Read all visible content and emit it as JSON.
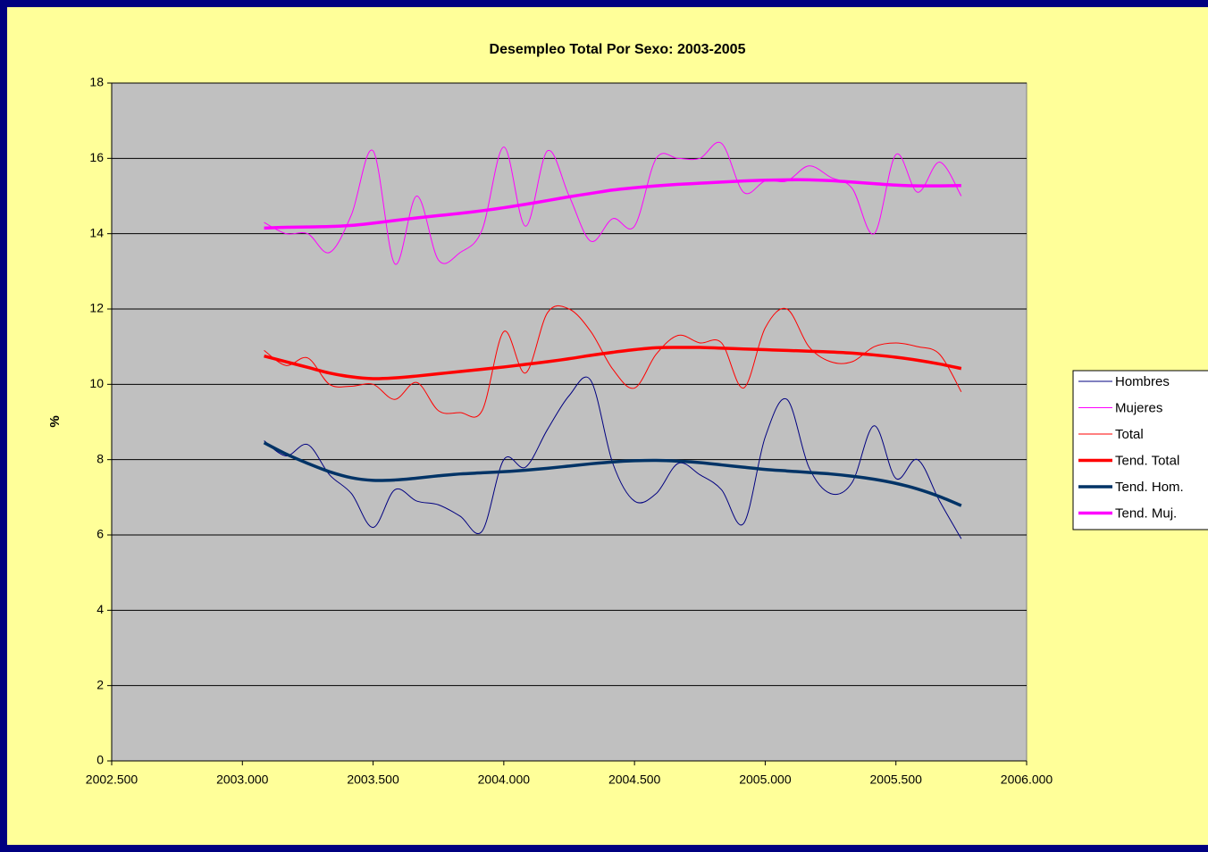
{
  "chart_data": {
    "type": "line",
    "title": "Desempleo Total Por Sexo: 2003-2005",
    "y_label": "%",
    "x": [
      2003.083,
      2003.167,
      2003.25,
      2003.333,
      2003.417,
      2003.5,
      2003.583,
      2003.667,
      2003.75,
      2003.833,
      2003.917,
      2004,
      2004.083,
      2004.167,
      2004.25,
      2004.333,
      2004.417,
      2004.5,
      2004.583,
      2004.667,
      2004.75,
      2004.833,
      2004.917,
      2005,
      2005.083,
      2005.167,
      2005.25,
      2005.333,
      2005.417,
      2005.5,
      2005.583,
      2005.667,
      2005.75
    ],
    "series": [
      {
        "name": "Hombres",
        "color": "#000080",
        "line_width": 1,
        "values": [
          8.5,
          8.1,
          8.4,
          7.6,
          7.1,
          6.2,
          7.2,
          6.9,
          6.8,
          6.5,
          6.1,
          8.0,
          7.8,
          8.8,
          9.7,
          10.1,
          7.9,
          6.9,
          7.1,
          7.9,
          7.6,
          7.2,
          6.3,
          8.6,
          9.6,
          7.8,
          7.1,
          7.4,
          8.9,
          7.5,
          8.0,
          6.9,
          5.9
        ]
      },
      {
        "name": "Mujeres",
        "color": "#ff00ff",
        "line_width": 1,
        "values": [
          14.3,
          14.0,
          14.0,
          13.5,
          14.5,
          16.2,
          13.2,
          15.0,
          13.3,
          13.5,
          14.1,
          16.3,
          14.2,
          16.2,
          15.0,
          13.8,
          14.4,
          14.2,
          16.0,
          16.0,
          16.0,
          16.4,
          15.1,
          15.4,
          15.4,
          15.8,
          15.5,
          15.2,
          14.0,
          16.1,
          15.1,
          15.9,
          15.0
        ]
      },
      {
        "name": "Total",
        "color": "#ff0000",
        "line_width": 1,
        "values": [
          10.9,
          10.5,
          10.7,
          10.0,
          9.95,
          10.0,
          9.6,
          10.05,
          9.3,
          9.25,
          9.3,
          11.4,
          10.3,
          11.9,
          12.0,
          11.4,
          10.4,
          9.9,
          10.8,
          11.3,
          11.1,
          11.1,
          9.9,
          11.5,
          12.0,
          11.0,
          10.6,
          10.6,
          11.0,
          11.1,
          11.0,
          10.8,
          9.8
        ]
      },
      {
        "name": "Tend. Total",
        "color": "#ff0000",
        "line_width": 3.5,
        "values": [
          10.75,
          10.6,
          10.45,
          10.3,
          10.2,
          10.15,
          10.17,
          10.22,
          10.28,
          10.34,
          10.4,
          10.46,
          10.53,
          10.6,
          10.68,
          10.77,
          10.85,
          10.92,
          10.97,
          10.98,
          10.98,
          10.96,
          10.94,
          10.92,
          10.9,
          10.88,
          10.86,
          10.83,
          10.78,
          10.72,
          10.64,
          10.54,
          10.42
        ]
      },
      {
        "name": "Tend. Hom.",
        "color": "#003366",
        "line_width": 3.5,
        "values": [
          8.45,
          8.15,
          7.9,
          7.68,
          7.52,
          7.45,
          7.46,
          7.51,
          7.57,
          7.62,
          7.65,
          7.68,
          7.72,
          7.77,
          7.83,
          7.89,
          7.94,
          7.97,
          7.98,
          7.96,
          7.92,
          7.86,
          7.8,
          7.74,
          7.7,
          7.66,
          7.62,
          7.56,
          7.48,
          7.37,
          7.22,
          7.02,
          6.78
        ]
      },
      {
        "name": "Tend. Muj.",
        "color": "#ff00ff",
        "line_width": 3.5,
        "values": [
          14.15,
          14.17,
          14.18,
          14.19,
          14.22,
          14.28,
          14.35,
          14.42,
          14.48,
          14.54,
          14.61,
          14.69,
          14.78,
          14.88,
          14.98,
          15.07,
          15.16,
          15.22,
          15.27,
          15.31,
          15.34,
          15.37,
          15.4,
          15.42,
          15.43,
          15.43,
          15.41,
          15.37,
          15.33,
          15.29,
          15.27,
          15.27,
          15.28
        ]
      }
    ],
    "xlim": [
      2002.5,
      2006
    ],
    "xticks": [
      {
        "value": 2002.5,
        "label": "2002.500"
      },
      {
        "value": 2003,
        "label": "2003.000"
      },
      {
        "value": 2003.5,
        "label": "2003.500"
      },
      {
        "value": 2004,
        "label": "2004.000"
      },
      {
        "value": 2004.5,
        "label": "2004.500"
      },
      {
        "value": 2005,
        "label": "2005.000"
      },
      {
        "value": 2005.5,
        "label": "2005.500"
      },
      {
        "value": 2006,
        "label": "2006.000"
      }
    ],
    "ylim": [
      0,
      18
    ],
    "yticks": [
      0,
      2,
      4,
      6,
      8,
      10,
      12,
      14,
      16,
      18
    ],
    "grid": true,
    "legend": "right",
    "plot_background": "#c0c0c0"
  }
}
